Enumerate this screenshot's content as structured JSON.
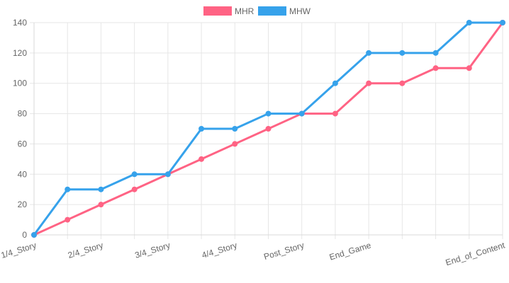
{
  "chart_data": {
    "type": "line",
    "categories": [
      "1/4_Story",
      "",
      "2/4_Story",
      "",
      "3/4_Story",
      "",
      "4/4_Story",
      "",
      "Post_Story",
      "",
      "End_Game",
      "",
      "",
      "",
      "End_of_Content"
    ],
    "series": [
      {
        "name": "MHR",
        "color": "#ff6384",
        "values": [
          0,
          10,
          20,
          30,
          40,
          50,
          60,
          70,
          80,
          80,
          100,
          100,
          110,
          110,
          140
        ]
      },
      {
        "name": "MHW",
        "color": "#36a2eb",
        "values": [
          0,
          30,
          30,
          40,
          40,
          70,
          70,
          80,
          80,
          100,
          120,
          120,
          120,
          140,
          140
        ]
      }
    ],
    "ylim": [
      0,
      140
    ],
    "yticks": [
      0,
      20,
      40,
      60,
      80,
      100,
      120,
      140
    ],
    "grid": true,
    "legend_position": "top-center",
    "title": "",
    "xlabel": "",
    "ylabel": ""
  }
}
